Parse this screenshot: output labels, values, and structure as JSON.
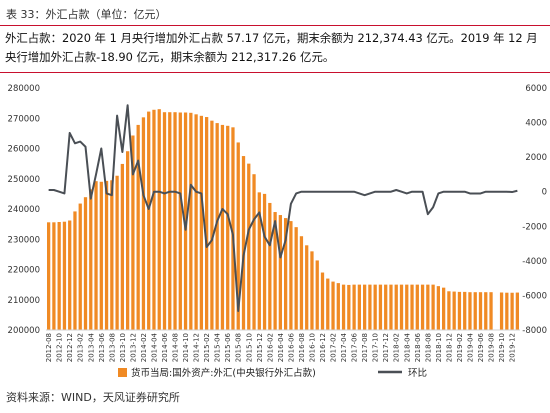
{
  "caption": "表 33：外汇占款（单位：亿元）",
  "description": "外汇占款：2020 年 1 月央行增加外汇占款 57.17 亿元，期末余额为 212,374.43 亿元。2019 年 12 月央行增加外汇占款-18.90 亿元，期末余额为 212,317.26 亿元。",
  "source": "资料来源：WIND，天风证券研究所",
  "colors": {
    "bar": "#f08a24",
    "line": "#4a4f55",
    "accent": "#c8102e",
    "axis_text": "#333333"
  },
  "chart_data": {
    "type": "bar",
    "y_axis_left": {
      "min": 200000,
      "max": 280000,
      "step": 10000
    },
    "y_axis_right": {
      "min": -8000,
      "max": 6000,
      "step": 2000
    },
    "grid": false,
    "legend_position": "bottom",
    "x_tick_labels": [
      "2012-08",
      "2012-10",
      "2012-12",
      "2013-02",
      "2013-04",
      "2013-06",
      "2013-08",
      "2013-10",
      "2013-12",
      "2014-02",
      "2014-04",
      "2014-06",
      "2014-08",
      "2014-10",
      "2014-12",
      "2015-02",
      "2015-04",
      "2015-06",
      "2015-08",
      "2015-10",
      "2015-12",
      "2016-02",
      "2016-04",
      "2016-06",
      "2016-08",
      "2016-10",
      "2016-12",
      "2017-02",
      "2017-04",
      "2017-06",
      "2017-08",
      "2017-10",
      "2017-12",
      "2018-02",
      "2018-04",
      "2018-06",
      "2018-08",
      "2018-10",
      "2018-12",
      "2019-02",
      "2019-04",
      "2019-06",
      "2019-08",
      "2019-10",
      "2019-12"
    ],
    "series": [
      {
        "name": "货币当局:国外资产:外汇(中央银行外汇占款)",
        "kind": "bar",
        "axis": "left",
        "x": [
          "2012-08",
          "2012-09",
          "2012-10",
          "2012-11",
          "2012-12",
          "2013-01",
          "2013-02",
          "2013-03",
          "2013-04",
          "2013-05",
          "2013-06",
          "2013-07",
          "2013-08",
          "2013-09",
          "2013-10",
          "2013-11",
          "2013-12",
          "2014-01",
          "2014-02",
          "2014-03",
          "2014-04",
          "2014-05",
          "2014-06",
          "2014-07",
          "2014-08",
          "2014-09",
          "2014-10",
          "2014-11",
          "2014-12",
          "2015-01",
          "2015-02",
          "2015-03",
          "2015-04",
          "2015-05",
          "2015-06",
          "2015-07",
          "2015-08",
          "2015-09",
          "2015-10",
          "2015-11",
          "2015-12",
          "2016-01",
          "2016-02",
          "2016-03",
          "2016-04",
          "2016-05",
          "2016-06",
          "2016-07",
          "2016-08",
          "2016-09",
          "2016-10",
          "2016-11",
          "2016-12",
          "2017-01",
          "2017-02",
          "2017-03",
          "2017-04",
          "2017-05",
          "2017-06",
          "2017-07",
          "2017-08",
          "2017-09",
          "2017-10",
          "2017-11",
          "2017-12",
          "2018-01",
          "2018-02",
          "2018-03",
          "2018-04",
          "2018-05",
          "2018-06",
          "2018-07",
          "2018-08",
          "2018-09",
          "2018-10",
          "2018-11",
          "2018-12",
          "2019-01",
          "2019-02",
          "2019-03",
          "2019-04",
          "2019-05",
          "2019-06",
          "2019-07",
          "2019-08",
          "2019-10",
          "2019-11",
          "2019-12",
          "2020-01"
        ],
        "values": [
          235600,
          235600,
          235700,
          235800,
          236200,
          239200,
          241800,
          243900,
          246500,
          249200,
          249000,
          249300,
          249500,
          251000,
          254900,
          259100,
          264300,
          267800,
          270300,
          272200,
          272800,
          273000,
          272000,
          272000,
          272000,
          271900,
          271900,
          271800,
          271300,
          270800,
          270400,
          269200,
          268400,
          267800,
          267500,
          267000,
          262000,
          257500,
          255000,
          251500,
          245500,
          245000,
          242000,
          239000,
          238000,
          237000,
          236000,
          234000,
          231000,
          228000,
          226000,
          223000,
          219000,
          217000,
          216000,
          215500,
          215000,
          214900,
          215000,
          215000,
          215000,
          215000,
          215000,
          215000,
          215000,
          215000,
          215000,
          215000,
          215000,
          215000,
          215000,
          215000,
          215000,
          215000,
          214500,
          214000,
          212800,
          212700,
          212600,
          212600,
          212500,
          212500,
          212500,
          212500,
          212500,
          212400,
          212330,
          212317.26,
          212374.43
        ]
      },
      {
        "name": "环比",
        "kind": "line",
        "axis": "right",
        "x": [
          "2012-08",
          "2012-09",
          "2012-10",
          "2012-11",
          "2012-12",
          "2013-01",
          "2013-02",
          "2013-03",
          "2013-04",
          "2013-05",
          "2013-06",
          "2013-07",
          "2013-08",
          "2013-09",
          "2013-10",
          "2013-11",
          "2013-12",
          "2014-01",
          "2014-02",
          "2014-03",
          "2014-04",
          "2014-05",
          "2014-06",
          "2014-07",
          "2014-08",
          "2014-09",
          "2014-10",
          "2014-11",
          "2014-12",
          "2015-01",
          "2015-02",
          "2015-03",
          "2015-04",
          "2015-05",
          "2015-06",
          "2015-07",
          "2015-08",
          "2015-09",
          "2015-10",
          "2015-11",
          "2015-12",
          "2016-01",
          "2016-02",
          "2016-03",
          "2016-04",
          "2016-05",
          "2016-06",
          "2016-07",
          "2016-08",
          "2016-09",
          "2016-10",
          "2016-11",
          "2016-12",
          "2017-01",
          "2017-02",
          "2017-03",
          "2017-04",
          "2017-05",
          "2017-06",
          "2017-07",
          "2017-08",
          "2017-09",
          "2017-10",
          "2017-11",
          "2017-12",
          "2018-01",
          "2018-02",
          "2018-03",
          "2018-04",
          "2018-05",
          "2018-06",
          "2018-07",
          "2018-08",
          "2018-09",
          "2018-10",
          "2018-11",
          "2018-12",
          "2019-01",
          "2019-02",
          "2019-03",
          "2019-04",
          "2019-05",
          "2019-06",
          "2019-07",
          "2019-08",
          "2019-10",
          "2019-11",
          "2019-12",
          "2020-01"
        ],
        "values": [
          100,
          100,
          0,
          -100,
          3400,
          2800,
          2900,
          2600,
          -400,
          1000,
          2500,
          -100,
          -200,
          4400,
          2300,
          5000,
          1000,
          1800,
          -200,
          -1000,
          0,
          0,
          -100,
          0,
          0,
          -100,
          -2200,
          400,
          0,
          -100,
          -3200,
          -2800,
          -1700,
          -1000,
          -1300,
          -2500,
          -6900,
          -3700,
          -2200,
          -1600,
          -1200,
          -2600,
          -3100,
          -1700,
          -3800,
          -2800,
          -700,
          -100,
          0,
          0,
          0,
          0,
          0,
          0,
          0,
          0,
          0,
          0,
          0,
          -100,
          -200,
          -100,
          0,
          0,
          0,
          0,
          100,
          0,
          -100,
          0,
          0,
          0,
          -1300,
          -900,
          -100,
          0,
          0,
          0,
          0,
          0,
          -100,
          -100,
          -100,
          0,
          0,
          0,
          0,
          -18.9,
          57.17
        ]
      }
    ]
  }
}
